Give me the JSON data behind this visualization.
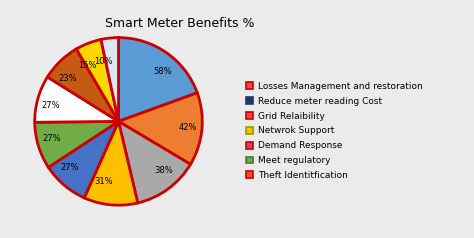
{
  "title": "Smart Meter Benefits %",
  "slices": [
    58,
    42,
    38,
    31,
    27,
    27,
    27,
    23,
    15,
    10
  ],
  "labels": [
    "58%",
    "42%",
    "38%",
    "31%",
    "27%",
    "27%",
    "27%",
    "23%",
    "15%",
    "10%"
  ],
  "colors": [
    "#5B9BD5",
    "#ED7D31",
    "#A9A9A9",
    "#FFC000",
    "#4472C4",
    "#70AD47",
    "#FFFFFF",
    "#C55A11",
    "#FFD700",
    "#DAE8F5"
  ],
  "legend_labels": [
    "Losses Management and restoration",
    "Reduce meter reading Cost",
    "Grid Relaibility",
    "Netwrok Support",
    "Demand Response",
    "Meet regulatory",
    "Theft Identitfication"
  ],
  "legend_face_colors": [
    "#FF4444",
    "#1F3864",
    "#FF4444",
    "#FFC000",
    "#C0504D",
    "#70AD47",
    "#FF4444"
  ],
  "legend_edge_colors": [
    "#CC0000",
    "#1F3864",
    "#CC0000",
    "#999900",
    "#CC0000",
    "#4A7A30",
    "#CC0000"
  ],
  "pie_edge_color": "#CC0000",
  "pie_linewidth": 2.0,
  "startangle": 90,
  "background_color": "#EBEBEB",
  "title_fontsize": 9,
  "label_fontsize": 6,
  "legend_fontsize": 6.5
}
